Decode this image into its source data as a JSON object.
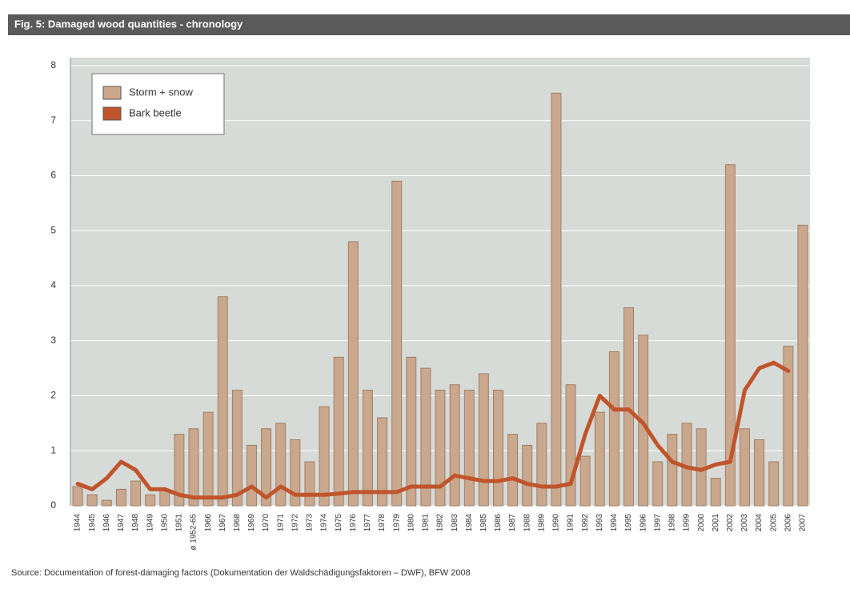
{
  "chart_data": {
    "type": "bar",
    "title": "Fig. 5: Damaged wood quantities - chronology",
    "source": "Source: Documentation of forest-damaging factors (Dokumentation der Waldschädigungsfaktoren – DWF), BFW 2008",
    "categories": [
      "1944",
      "1945",
      "1946",
      "1947",
      "1948",
      "1949",
      "1950",
      "1951",
      "ø 1952-65",
      "1966",
      "1967",
      "1968",
      "1969",
      "1970",
      "1971",
      "1972",
      "1973",
      "1974",
      "1975",
      "1976",
      "1977",
      "1978",
      "1979",
      "1980",
      "1981",
      "1982",
      "1983",
      "1984",
      "1985",
      "1986",
      "1987",
      "1988",
      "1989",
      "1990",
      "1991",
      "1992",
      "1993",
      "1994",
      "1995",
      "1996",
      "1997",
      "1998",
      "1999",
      "2000",
      "2001",
      "2002",
      "2003",
      "2004",
      "2005",
      "2006",
      "2007"
    ],
    "series": [
      {
        "name": "Storm + snow",
        "color": "#c9a88e",
        "kind": "bar",
        "values": [
          0.35,
          0.2,
          0.1,
          0.3,
          0.45,
          0.2,
          0.3,
          1.3,
          1.4,
          1.7,
          3.8,
          2.1,
          1.1,
          1.4,
          1.5,
          1.2,
          0.8,
          1.8,
          2.7,
          4.8,
          2.1,
          1.6,
          5.9,
          2.7,
          2.5,
          2.1,
          2.2,
          2.1,
          2.4,
          2.1,
          1.3,
          1.1,
          1.5,
          7.5,
          2.2,
          0.9,
          1.7,
          2.8,
          3.6,
          3.1,
          0.8,
          1.3,
          1.5,
          1.4,
          0.5,
          6.2,
          1.4,
          1.2,
          0.8,
          2.9,
          5.1
        ]
      },
      {
        "name": "Bark beetle",
        "color": "#c0552c",
        "kind": "line",
        "values": [
          0.4,
          0.3,
          0.5,
          0.8,
          0.65,
          0.3,
          0.3,
          0.2,
          0.15,
          0.15,
          0.15,
          0.2,
          0.35,
          0.15,
          0.35,
          0.2,
          0.2,
          0.2,
          0.22,
          0.25,
          0.25,
          0.25,
          0.25,
          0.35,
          0.35,
          0.35,
          0.55,
          0.5,
          0.45,
          0.45,
          0.5,
          0.4,
          0.35,
          0.35,
          0.4,
          1.3,
          2.0,
          1.75,
          1.75,
          1.5,
          1.1,
          0.8,
          0.7,
          0.65,
          0.75,
          0.8,
          2.1,
          2.5,
          2.6,
          2.45,
          null
        ]
      }
    ],
    "ylim": [
      0,
      8
    ],
    "yticks": [
      0,
      1,
      2,
      3,
      4,
      5,
      6,
      7,
      8
    ],
    "grid": true,
    "legend": "top-left"
  }
}
